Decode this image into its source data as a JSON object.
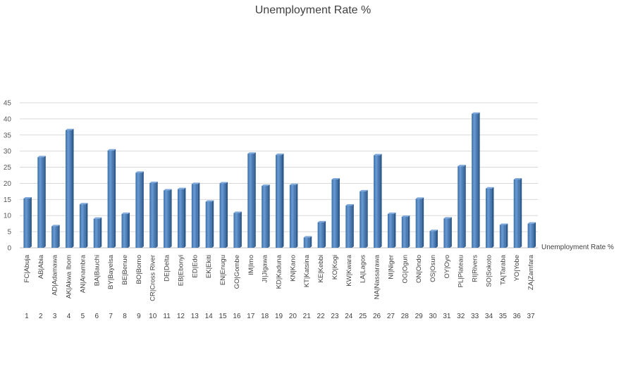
{
  "chart_data": {
    "type": "bar",
    "title": "Unemployment Rate %",
    "legend": {
      "label": "Unemployment Rate %",
      "position": "right"
    },
    "ylim": [
      0,
      45
    ],
    "yticks": [
      0,
      5,
      10,
      15,
      20,
      25,
      30,
      35,
      40,
      45
    ],
    "grid": true,
    "categories": [
      "FC|Abuja",
      "AB|Abia",
      "AD|Adamawa",
      "AK|Akwa Ibom",
      "AN|Anambra",
      "BA|Bauchi",
      "BY|Bayelsa",
      "BE|Benue",
      "BO|Borno",
      "CR|Cross River",
      "DE|Delta",
      "EB|Ebonyi",
      "ED|Edo",
      "EK|Ekiti",
      "EN|Enugu",
      "GO|Gombe",
      "IM|Imo",
      "JI|Jigawa",
      "KD|Kaduna",
      "KN|Kano",
      "KT|Katsina",
      "KE|Kebbi",
      "KO|Kogi",
      "KW|Kwara",
      "LA|Lagos",
      "NA|Nassarawa",
      "NI|Niger",
      "OG|Ogun",
      "ON|Ondo",
      "OS|Osun",
      "OY|Oyo",
      "PL|Plateau",
      "RI|Rivers",
      "SO|Sokoto",
      "TA|Taraba",
      "YO|Yobe",
      "ZA|Zamfara"
    ],
    "index": [
      "1",
      "2",
      "3",
      "4",
      "5",
      "6",
      "7",
      "8",
      "9",
      "10",
      "11",
      "12",
      "13",
      "14",
      "15",
      "16",
      "17",
      "18",
      "19",
      "20",
      "21",
      "22",
      "23",
      "24",
      "25",
      "26",
      "27",
      "28",
      "29",
      "30",
      "31",
      "32",
      "33",
      "34",
      "35",
      "36",
      "37"
    ],
    "series": [
      {
        "name": "Unemployment Rate %",
        "color": "#4f81bd",
        "values": [
          15.3,
          28.1,
          6.7,
          36.5,
          13.5,
          9.0,
          30.2,
          10.5,
          23.3,
          20.1,
          17.8,
          18.2,
          19.8,
          14.3,
          20.0,
          10.8,
          29.2,
          19.2,
          28.8,
          19.5,
          3.2,
          7.9,
          21.2,
          13.1,
          17.5,
          28.7,
          10.5,
          9.6,
          15.2,
          5.2,
          9.1,
          25.3,
          41.6,
          18.4,
          7.1,
          21.2,
          7.5
        ]
      }
    ]
  }
}
